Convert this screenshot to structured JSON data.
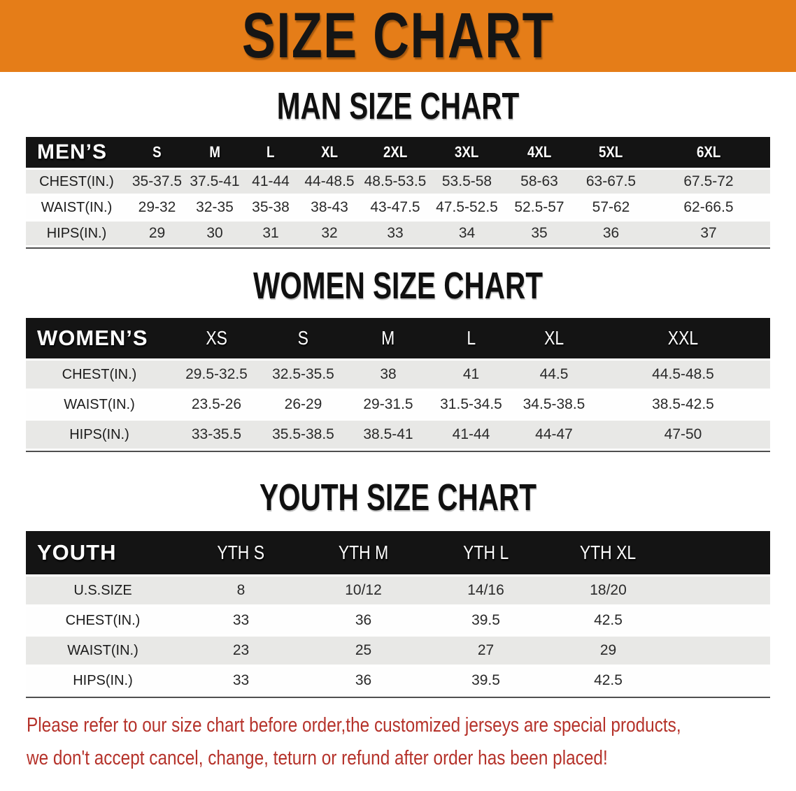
{
  "banner": {
    "title": "SIZE CHART"
  },
  "headings": {
    "men": "MAN SIZE CHART",
    "women": "WOMEN SIZE CHART",
    "youth": "YOUTH SIZE CHART"
  },
  "tables": {
    "men": {
      "label": "MEN’S",
      "sizes": [
        "S",
        "M",
        "L",
        "XL",
        "2XL",
        "3XL",
        "4XL",
        "5XL",
        "6XL"
      ],
      "rows": [
        {
          "label": "CHEST(IN.)",
          "values": [
            "35-37.5",
            "37.5-41",
            "41-44",
            "44-48.5",
            "48.5-53.5",
            "53.5-58",
            "58-63",
            "63-67.5",
            "67.5-72"
          ]
        },
        {
          "label": "WAIST(IN.)",
          "values": [
            "29-32",
            "32-35",
            "35-38",
            "38-43",
            "43-47.5",
            "47.5-52.5",
            "52.5-57",
            "57-62",
            "62-66.5"
          ]
        },
        {
          "label": "HIPS(IN.)",
          "values": [
            "29",
            "30",
            "31",
            "32",
            "33",
            "34",
            "35",
            "36",
            "37"
          ]
        }
      ]
    },
    "women": {
      "label": "WOMEN’S",
      "sizes": [
        "XS",
        "S",
        "M",
        "L",
        "XL",
        "XXL"
      ],
      "rows": [
        {
          "label": "CHEST(IN.)",
          "values": [
            "29.5-32.5",
            "32.5-35.5",
            "38",
            "41",
            "44.5",
            "44.5-48.5"
          ]
        },
        {
          "label": "WAIST(IN.)",
          "values": [
            "23.5-26",
            "26-29",
            "29-31.5",
            "31.5-34.5",
            "34.5-38.5",
            "38.5-42.5"
          ]
        },
        {
          "label": "HIPS(IN.)",
          "values": [
            "33-35.5",
            "35.5-38.5",
            "38.5-41",
            "41-44",
            "44-47",
            "47-50"
          ]
        }
      ]
    },
    "youth": {
      "label": "YOUTH",
      "sizes": [
        "YTH S",
        "YTH M",
        "YTH L",
        "YTH XL"
      ],
      "rows": [
        {
          "label": "U.S.SIZE",
          "values": [
            "8",
            "10/12",
            "14/16",
            "18/20"
          ]
        },
        {
          "label": "CHEST(IN.)",
          "values": [
            "33",
            "36",
            "39.5",
            "42.5"
          ]
        },
        {
          "label": "WAIST(IN.)",
          "values": [
            "23",
            "25",
            "27",
            "29"
          ]
        },
        {
          "label": "HIPS(IN.)",
          "values": [
            "33",
            "36",
            "39.5",
            "42.5"
          ]
        }
      ]
    }
  },
  "disclaimer": {
    "line1": "Please refer to our size chart before order,the customized jerseys are special products,",
    "line2": "we don't accept cancel, change, teturn or refund after order has been placed!"
  },
  "colors": {
    "banner_bg": "#e57d18",
    "header_bar": "#141414",
    "row_alt": "#e8e8e6",
    "row_white": "#fefefe",
    "heading_text": "#101010",
    "disclaimer_red": "#b5322a"
  }
}
